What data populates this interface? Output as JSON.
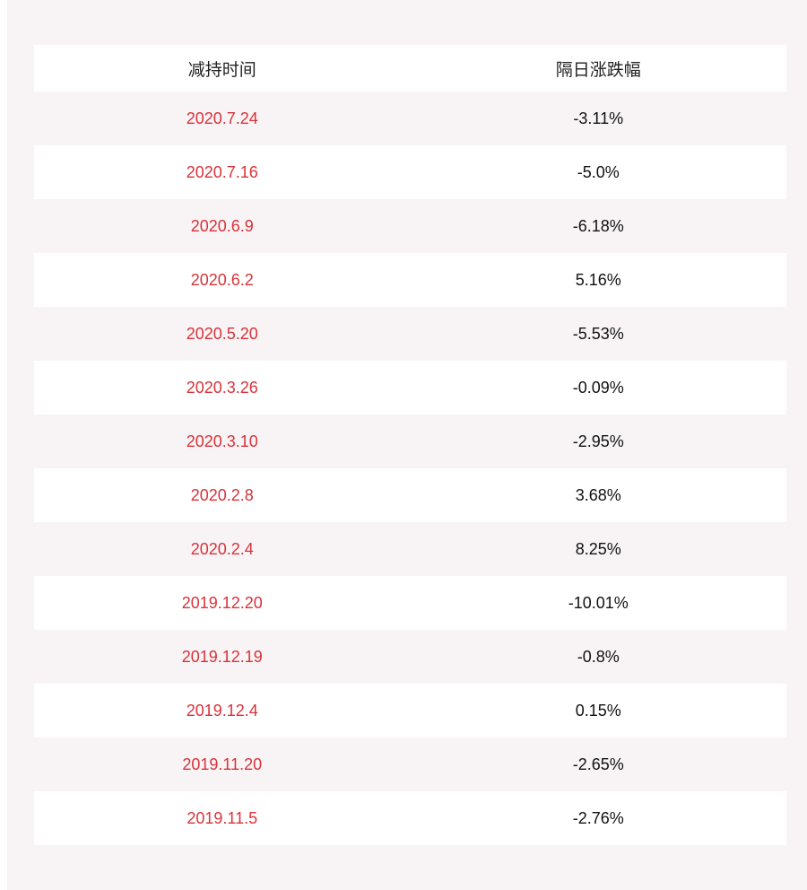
{
  "table": {
    "headers": [
      "减持时间",
      "隔日涨跌幅"
    ],
    "rows": [
      {
        "date": "2020.7.24",
        "change": "-3.11%"
      },
      {
        "date": "2020.7.16",
        "change": "-5.0%"
      },
      {
        "date": "2020.6.9",
        "change": "-6.18%"
      },
      {
        "date": "2020.6.2",
        "change": "5.16%"
      },
      {
        "date": "2020.5.20",
        "change": "-5.53%"
      },
      {
        "date": "2020.3.26",
        "change": "-0.09%"
      },
      {
        "date": "2020.3.10",
        "change": "-2.95%"
      },
      {
        "date": "2020.2.8",
        "change": "3.68%"
      },
      {
        "date": "2020.2.4",
        "change": "8.25%"
      },
      {
        "date": "2019.12.20",
        "change": "-10.01%"
      },
      {
        "date": "2019.12.19",
        "change": "-0.8%"
      },
      {
        "date": "2019.12.4",
        "change": "0.15%"
      },
      {
        "date": "2019.11.20",
        "change": "-2.65%"
      },
      {
        "date": "2019.11.5",
        "change": "-2.76%"
      }
    ]
  },
  "colors": {
    "date_text": "#d9323a",
    "change_text": "#111111",
    "background": "#f8f4f5",
    "row_alt": "#ffffff"
  }
}
